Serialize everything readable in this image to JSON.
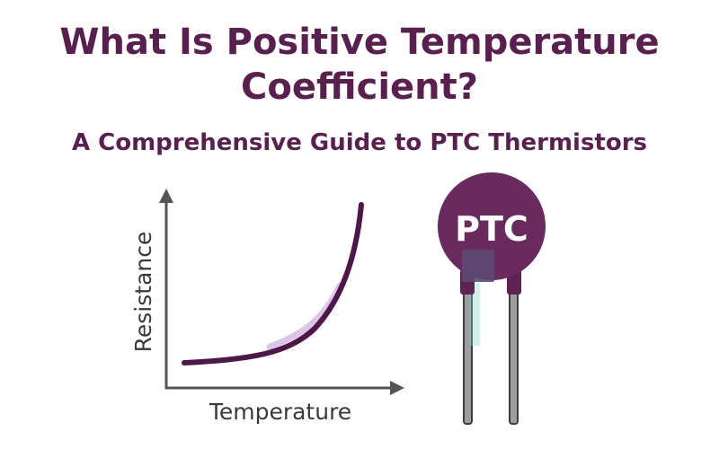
{
  "heading": {
    "title": "What Is Positive Temperature Coefficient?",
    "subtitle": "A Comprehensive Guide to PTC Thermistors"
  },
  "graph": {
    "xlabel": "Temperature",
    "ylabel": "Resistance"
  },
  "component": {
    "label": "PTC"
  },
  "colors": {
    "title": "#5a1f4e",
    "curve": "#4f1649",
    "thermistor": "#6b2a5e",
    "axis": "#555555",
    "lead": "#9e9e9e",
    "lead_edge": "#3e3e3e",
    "accent": "#7ad6c4"
  },
  "icons": [
    "resistance-temperature-curve",
    "ptc-thermistor"
  ]
}
